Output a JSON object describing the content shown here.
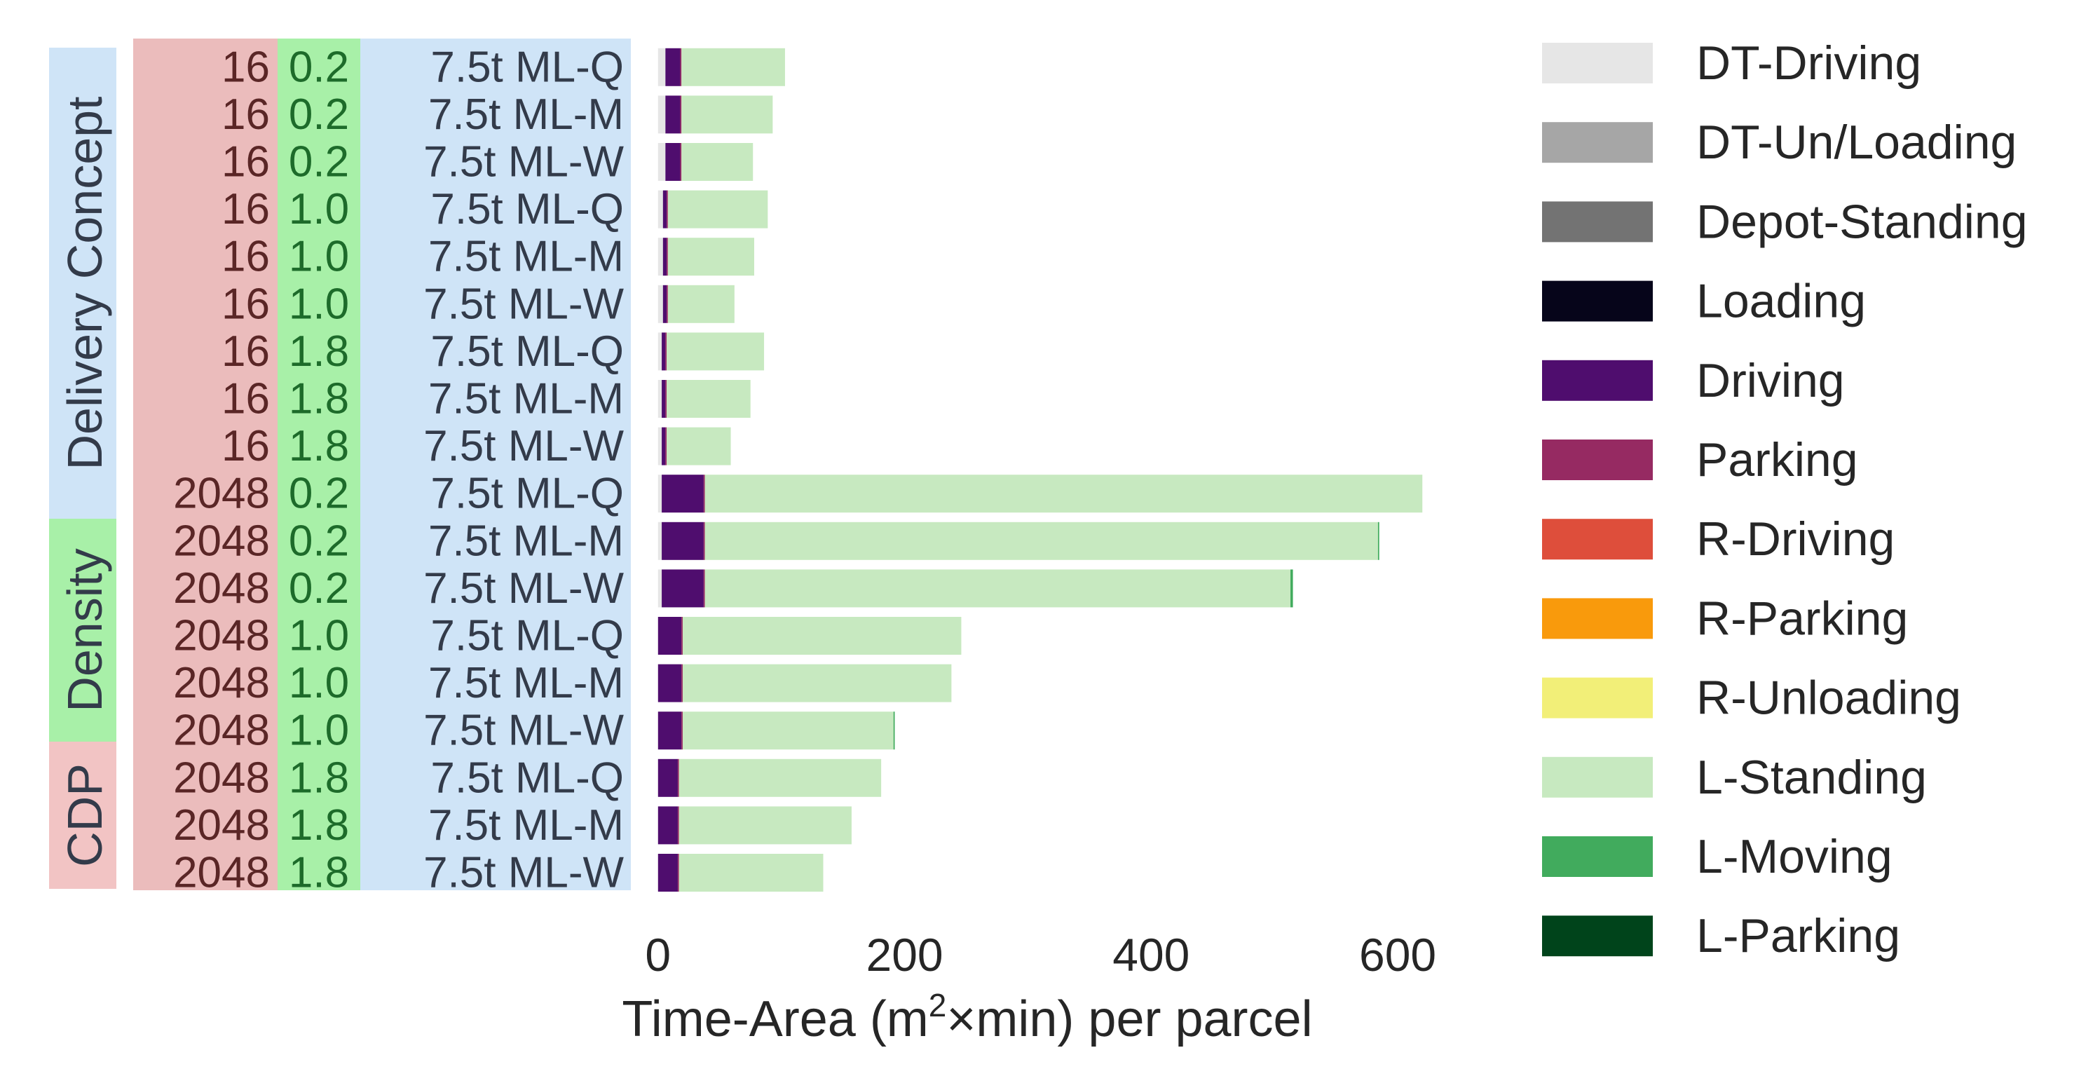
{
  "chart_data": {
    "type": "bar",
    "orientation": "horizontal",
    "stacked": true,
    "group_labels": {
      "concept": "Delivery Concept",
      "density": "Density",
      "cdp": "CDP"
    },
    "group_colors": {
      "concept": "#cfe4f7",
      "density": "#a8f0a8",
      "cdp": "#f2c4c4"
    },
    "categories": [
      {
        "cdp": "16",
        "density": "0.2",
        "concept": "7.5t ML-Q"
      },
      {
        "cdp": "16",
        "density": "0.2",
        "concept": "7.5t ML-M"
      },
      {
        "cdp": "16",
        "density": "0.2",
        "concept": "7.5t ML-W"
      },
      {
        "cdp": "16",
        "density": "1.0",
        "concept": "7.5t ML-Q"
      },
      {
        "cdp": "16",
        "density": "1.0",
        "concept": "7.5t ML-M"
      },
      {
        "cdp": "16",
        "density": "1.0",
        "concept": "7.5t ML-W"
      },
      {
        "cdp": "16",
        "density": "1.8",
        "concept": "7.5t ML-Q"
      },
      {
        "cdp": "16",
        "density": "1.8",
        "concept": "7.5t ML-M"
      },
      {
        "cdp": "16",
        "density": "1.8",
        "concept": "7.5t ML-W"
      },
      {
        "cdp": "2048",
        "density": "0.2",
        "concept": "7.5t ML-Q"
      },
      {
        "cdp": "2048",
        "density": "0.2",
        "concept": "7.5t ML-M"
      },
      {
        "cdp": "2048",
        "density": "0.2",
        "concept": "7.5t ML-W"
      },
      {
        "cdp": "2048",
        "density": "1.0",
        "concept": "7.5t ML-Q"
      },
      {
        "cdp": "2048",
        "density": "1.0",
        "concept": "7.5t ML-M"
      },
      {
        "cdp": "2048",
        "density": "1.0",
        "concept": "7.5t ML-W"
      },
      {
        "cdp": "2048",
        "density": "1.8",
        "concept": "7.5t ML-Q"
      },
      {
        "cdp": "2048",
        "density": "1.8",
        "concept": "7.5t ML-M"
      },
      {
        "cdp": "2048",
        "density": "1.8",
        "concept": "7.5t ML-W"
      }
    ],
    "series": [
      {
        "name": "DT-Driving",
        "color": "#e6e6e6",
        "values": [
          6,
          6,
          6,
          4,
          4,
          4,
          3,
          3,
          3,
          3,
          3,
          3,
          0,
          0,
          0,
          0,
          0,
          0
        ]
      },
      {
        "name": "DT-Un/Loading",
        "color": "#a6a6a6",
        "values": [
          0,
          0,
          0,
          0,
          0,
          0,
          0,
          0,
          0,
          0,
          0,
          0,
          0,
          0,
          0,
          0,
          0,
          0
        ]
      },
      {
        "name": "Depot-Standing",
        "color": "#737373",
        "values": [
          0,
          0,
          0,
          0,
          0,
          0,
          0,
          0,
          0,
          0,
          0,
          0,
          0,
          0,
          0,
          0,
          0,
          0
        ]
      },
      {
        "name": "Loading",
        "color": "#06051a",
        "values": [
          0,
          0,
          0,
          0,
          0,
          0,
          0,
          0,
          0,
          0,
          0,
          0,
          0,
          0,
          0,
          0,
          0,
          0
        ]
      },
      {
        "name": "Driving",
        "color": "#4f0d6e",
        "values": [
          12,
          12,
          12,
          3,
          3,
          3,
          3,
          3,
          3,
          34,
          34,
          34,
          19,
          19,
          19,
          16,
          16,
          16
        ]
      },
      {
        "name": "Parking",
        "color": "#962a62",
        "values": [
          1,
          1,
          1,
          1,
          1,
          1,
          1,
          1,
          1,
          1,
          1,
          1,
          1,
          1,
          1,
          1,
          1,
          1
        ]
      },
      {
        "name": "R-Driving",
        "color": "#de4e3b",
        "values": [
          0,
          0,
          0,
          0,
          0,
          0,
          0,
          0,
          0,
          0,
          0,
          0,
          0,
          0,
          0,
          0,
          0,
          0
        ]
      },
      {
        "name": "R-Parking",
        "color": "#f99a0c",
        "values": [
          0,
          0,
          0,
          0,
          0,
          0,
          0,
          0,
          0,
          0,
          0,
          0,
          0,
          0,
          0,
          0,
          0,
          0
        ]
      },
      {
        "name": "R-Unloading",
        "color": "#f2ef78",
        "values": [
          0,
          0,
          0,
          0,
          0,
          0,
          0,
          0,
          0,
          0,
          0,
          0,
          0,
          0,
          0,
          0,
          0,
          0
        ]
      },
      {
        "name": "L-Standing",
        "color": "#c7e9c0",
        "values": [
          84,
          74,
          58,
          81,
          70,
          54,
          79,
          68,
          52,
          582,
          546,
          475,
          226,
          218,
          171,
          164,
          140,
          117
        ]
      },
      {
        "name": "L-Moving",
        "color": "#41ab5d",
        "values": [
          0,
          0,
          0,
          0,
          0,
          0,
          0,
          0,
          0,
          0,
          1,
          2,
          0,
          0,
          1,
          0,
          0,
          0
        ]
      },
      {
        "name": "L-Parking",
        "color": "#00441b",
        "values": [
          0,
          0,
          0,
          0,
          0,
          0,
          0,
          0,
          0,
          0,
          0,
          0,
          0,
          0,
          0,
          0,
          0,
          0
        ]
      }
    ],
    "xlabel": "Time-Area (m",
    "xlabel_sup": "2",
    "xlabel_rest": "×min) per parcel",
    "xticks": [
      "0",
      "200",
      "400",
      "600"
    ],
    "xlim": [
      -5,
      650
    ],
    "grid": false,
    "legend_position": "right"
  }
}
